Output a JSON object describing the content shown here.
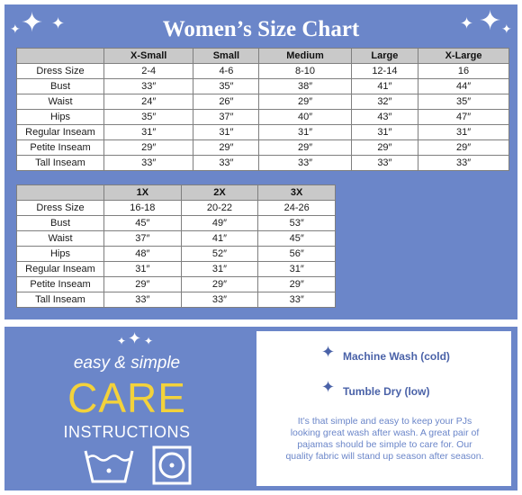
{
  "chart": {
    "title": "Women’s Size Chart",
    "table1": {
      "columns": [
        "X-Small",
        "Small",
        "Medium",
        "Large",
        "X-Large"
      ],
      "rows": [
        {
          "label": "Dress Size",
          "values": [
            "2-4",
            "4-6",
            "8-10",
            "12-14",
            "16"
          ]
        },
        {
          "label": "Bust",
          "values": [
            "33″",
            "35″",
            "38″",
            "41″",
            "44″"
          ]
        },
        {
          "label": "Waist",
          "values": [
            "24″",
            "26″",
            "29″",
            "32″",
            "35″"
          ]
        },
        {
          "label": "Hips",
          "values": [
            "35″",
            "37″",
            "40″",
            "43″",
            "47″"
          ]
        },
        {
          "label": "Regular Inseam",
          "values": [
            "31″",
            "31″",
            "31″",
            "31″",
            "31″"
          ]
        },
        {
          "label": "Petite Inseam",
          "values": [
            "29″",
            "29″",
            "29″",
            "29″",
            "29″"
          ]
        },
        {
          "label": "Tall Inseam",
          "values": [
            "33″",
            "33″",
            "33″",
            "33″",
            "33″"
          ]
        }
      ]
    },
    "table2": {
      "columns": [
        "1X",
        "2X",
        "3X"
      ],
      "rows": [
        {
          "label": "Dress Size",
          "values": [
            "16-18",
            "20-22",
            "24-26"
          ]
        },
        {
          "label": "Bust",
          "values": [
            "45″",
            "49″",
            "53″"
          ]
        },
        {
          "label": "Waist",
          "values": [
            "37″",
            "41″",
            "45″"
          ]
        },
        {
          "label": "Hips",
          "values": [
            "48″",
            "52″",
            "56″"
          ]
        },
        {
          "label": "Regular Inseam",
          "values": [
            "31″",
            "31″",
            "31″"
          ]
        },
        {
          "label": "Petite Inseam",
          "values": [
            "29″",
            "29″",
            "29″"
          ]
        },
        {
          "label": "Tall Inseam",
          "values": [
            "33″",
            "33″",
            "33″"
          ]
        }
      ]
    }
  },
  "care": {
    "subtitle": "easy & simple",
    "big": "CARE",
    "instructions": "INSTRUCTIONS",
    "icons": [
      "wash-basin-icon",
      "tumble-dry-icon"
    ],
    "items": [
      "Machine Wash (cold)",
      "Tumble Dry (low)"
    ],
    "text": "It’s that simple and easy to keep your PJs looking great wash after wash. A great pair of pajamas should be simple to care for. Our quality fabric will stand up season after season."
  },
  "colors": {
    "panel": "#6b86c9",
    "accent": "#f3d23b",
    "header": "#c9c9c9",
    "itemText": "#4a62a8"
  }
}
